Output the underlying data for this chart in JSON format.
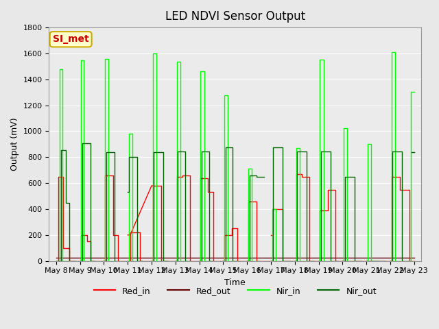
{
  "title": "LED NDVI Sensor Output",
  "xlabel": "Time",
  "ylabel": "Output (mV)",
  "ylim": [
    0,
    1800
  ],
  "background_color": "#e8e8e8",
  "plot_bg_color": "#ebebeb",
  "annotation_text": "SI_met",
  "annotation_bg": "#ffffcc",
  "annotation_border": "#ccaa00",
  "annotation_text_color": "#cc0000",
  "x_tick_labels": [
    "May 8",
    "May 9",
    "May 10",
    "May 11",
    "May 12",
    "May 13",
    "May 14",
    "May 15",
    "May 16",
    "May 17",
    "May 18",
    "May 19",
    "May 20",
    "May 21",
    "May 22",
    "May 23"
  ],
  "red_in_color": "#ff0000",
  "red_out_color": "#660000",
  "nir_in_color": "#00ff00",
  "nir_out_color": "#006600"
}
